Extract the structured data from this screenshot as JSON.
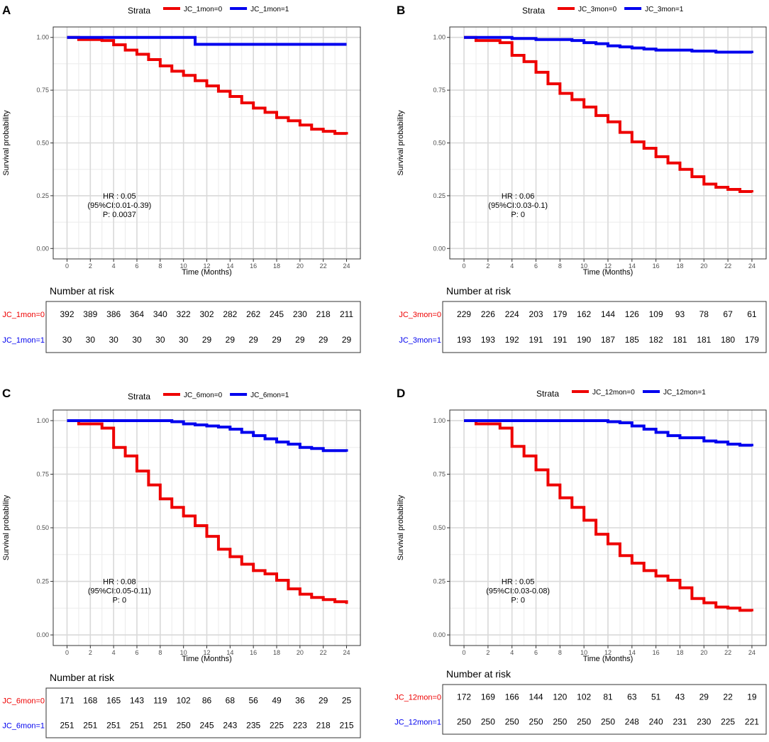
{
  "chart_data": [
    {
      "panel_label": "A",
      "type": "line",
      "legend_title": "Strata",
      "xlabel": "Time (Months)",
      "ylabel": "Survival probability",
      "x_ticks": [
        0,
        2,
        4,
        6,
        8,
        10,
        12,
        14,
        16,
        18,
        20,
        22,
        24
      ],
      "y_ticks": [
        0.0,
        0.25,
        0.5,
        0.75,
        1.0
      ],
      "y_tick_labels": [
        "0.00",
        "0.25",
        "0.50",
        "0.75",
        "1.00"
      ],
      "xlim": [
        0,
        24
      ],
      "ylim": [
        0,
        1
      ],
      "series": [
        {
          "name": "JC_1mon=0",
          "color": "#ee0000",
          "x": [
            0,
            1,
            2,
            3,
            4,
            5,
            6,
            7,
            8,
            9,
            10,
            11,
            12,
            13,
            14,
            15,
            16,
            17,
            18,
            19,
            20,
            21,
            22,
            23,
            24
          ],
          "y": [
            1.0,
            0.99,
            0.99,
            0.985,
            0.965,
            0.94,
            0.92,
            0.895,
            0.865,
            0.84,
            0.82,
            0.795,
            0.77,
            0.745,
            0.72,
            0.69,
            0.665,
            0.645,
            0.62,
            0.605,
            0.585,
            0.565,
            0.555,
            0.545,
            0.54
          ]
        },
        {
          "name": "JC_1mon=1",
          "color": "#0000ee",
          "x": [
            0,
            11,
            24
          ],
          "y": [
            1.0,
            0.967,
            0.967
          ]
        }
      ],
      "annotation": [
        "HR : 0.05",
        "(95%CI:0.01-0.39)",
        "P: 0.0037"
      ],
      "risk_title": "Number at risk",
      "risk_table": [
        {
          "label": "JC_1mon=0",
          "color": "#ee0000",
          "values": [
            "392",
            "389",
            "386",
            "364",
            "340",
            "322",
            "302",
            "282",
            "262",
            "245",
            "230",
            "218",
            "211"
          ]
        },
        {
          "label": "JC_1mon=1",
          "color": "#0000ee",
          "values": [
            "30",
            "30",
            "30",
            "30",
            "30",
            "30",
            "29",
            "29",
            "29",
            "29",
            "29",
            "29",
            "29"
          ]
        }
      ]
    },
    {
      "panel_label": "B",
      "type": "line",
      "legend_title": "Strata",
      "xlabel": "Time (Months)",
      "ylabel": "Survival probability",
      "x_ticks": [
        0,
        2,
        4,
        6,
        8,
        10,
        12,
        14,
        16,
        18,
        20,
        22,
        24
      ],
      "y_ticks": [
        0.0,
        0.25,
        0.5,
        0.75,
        1.0
      ],
      "y_tick_labels": [
        "0.00",
        "0.25",
        "0.50",
        "0.75",
        "1.00"
      ],
      "xlim": [
        0,
        24
      ],
      "ylim": [
        0,
        1
      ],
      "series": [
        {
          "name": "JC_3mon=0",
          "color": "#ee0000",
          "x": [
            0,
            1,
            2,
            3,
            4,
            5,
            6,
            7,
            8,
            9,
            10,
            11,
            12,
            13,
            14,
            15,
            16,
            17,
            18,
            19,
            20,
            21,
            22,
            23,
            24
          ],
          "y": [
            1.0,
            0.985,
            0.985,
            0.975,
            0.915,
            0.885,
            0.835,
            0.78,
            0.735,
            0.705,
            0.67,
            0.63,
            0.6,
            0.55,
            0.505,
            0.475,
            0.435,
            0.405,
            0.375,
            0.34,
            0.305,
            0.29,
            0.28,
            0.27,
            0.265
          ]
        },
        {
          "name": "JC_3mon=1",
          "color": "#0000ee",
          "x": [
            0,
            2,
            4,
            6,
            8,
            9,
            10,
            11,
            12,
            13,
            14,
            15,
            16,
            17,
            18,
            19,
            20,
            21,
            22,
            23,
            24
          ],
          "y": [
            1.0,
            1.0,
            0.995,
            0.99,
            0.99,
            0.985,
            0.975,
            0.97,
            0.96,
            0.955,
            0.95,
            0.945,
            0.94,
            0.94,
            0.94,
            0.935,
            0.935,
            0.93,
            0.93,
            0.93,
            0.925
          ]
        }
      ],
      "annotation": [
        "HR : 0.06",
        "(95%CI:0.03-0.1)",
        "P: 0"
      ],
      "risk_title": "Number at risk",
      "risk_table": [
        {
          "label": "JC_3mon=0",
          "color": "#ee0000",
          "values": [
            "229",
            "226",
            "224",
            "203",
            "179",
            "162",
            "144",
            "126",
            "109",
            "93",
            "78",
            "67",
            "61"
          ]
        },
        {
          "label": "JC_3mon=1",
          "color": "#0000ee",
          "values": [
            "193",
            "193",
            "192",
            "191",
            "191",
            "190",
            "187",
            "185",
            "182",
            "181",
            "181",
            "180",
            "179"
          ]
        }
      ]
    },
    {
      "panel_label": "C",
      "type": "line",
      "legend_title": "Strata",
      "xlabel": "Time (Months)",
      "ylabel": "Survival probability",
      "x_ticks": [
        0,
        2,
        4,
        6,
        8,
        10,
        12,
        14,
        16,
        18,
        20,
        22,
        24
      ],
      "y_ticks": [
        0.0,
        0.25,
        0.5,
        0.75,
        1.0
      ],
      "y_tick_labels": [
        "0.00",
        "0.25",
        "0.50",
        "0.75",
        "1.00"
      ],
      "xlim": [
        0,
        24
      ],
      "ylim": [
        0,
        1
      ],
      "series": [
        {
          "name": "JC_6mon=0",
          "color": "#ee0000",
          "x": [
            0,
            1,
            2,
            3,
            4,
            5,
            6,
            7,
            8,
            9,
            10,
            11,
            12,
            13,
            14,
            15,
            16,
            17,
            18,
            19,
            20,
            21,
            22,
            23,
            24
          ],
          "y": [
            1.0,
            0.985,
            0.985,
            0.965,
            0.875,
            0.835,
            0.765,
            0.7,
            0.635,
            0.595,
            0.555,
            0.51,
            0.46,
            0.4,
            0.365,
            0.33,
            0.3,
            0.285,
            0.255,
            0.215,
            0.19,
            0.175,
            0.165,
            0.155,
            0.145
          ]
        },
        {
          "name": "JC_6mon=1",
          "color": "#0000ee",
          "x": [
            0,
            2,
            4,
            6,
            8,
            9,
            10,
            11,
            12,
            13,
            14,
            15,
            16,
            17,
            18,
            19,
            20,
            21,
            22,
            23,
            24
          ],
          "y": [
            1.0,
            1.0,
            1.0,
            1.0,
            1.0,
            0.995,
            0.985,
            0.98,
            0.975,
            0.97,
            0.96,
            0.945,
            0.93,
            0.915,
            0.9,
            0.89,
            0.875,
            0.87,
            0.86,
            0.86,
            0.855
          ]
        }
      ],
      "annotation": [
        "HR : 0.08",
        "(95%CI:0.05-0.11)",
        "P: 0"
      ],
      "risk_title": "Number at risk",
      "risk_table": [
        {
          "label": "JC_6mon=0",
          "color": "#ee0000",
          "values": [
            "171",
            "168",
            "165",
            "143",
            "119",
            "102",
            "86",
            "68",
            "56",
            "49",
            "36",
            "29",
            "25"
          ]
        },
        {
          "label": "JC_6mon=1",
          "color": "#0000ee",
          "values": [
            "251",
            "251",
            "251",
            "251",
            "251",
            "250",
            "245",
            "243",
            "235",
            "225",
            "223",
            "218",
            "215"
          ]
        }
      ]
    },
    {
      "panel_label": "D",
      "type": "line",
      "legend_title": "Strata",
      "xlabel": "Time (Months)",
      "ylabel": "Survival probability",
      "x_ticks": [
        0,
        2,
        4,
        6,
        8,
        10,
        12,
        14,
        16,
        18,
        20,
        22,
        24
      ],
      "y_ticks": [
        0.0,
        0.25,
        0.5,
        0.75,
        1.0
      ],
      "y_tick_labels": [
        "0.00",
        "0.25",
        "0.50",
        "0.75",
        "1.00"
      ],
      "xlim": [
        0,
        24
      ],
      "ylim": [
        0,
        1
      ],
      "series": [
        {
          "name": "JC_12mon=0",
          "color": "#ee0000",
          "x": [
            0,
            1,
            2,
            3,
            4,
            5,
            6,
            7,
            8,
            9,
            10,
            11,
            12,
            13,
            14,
            15,
            16,
            17,
            18,
            19,
            20,
            21,
            22,
            23,
            24
          ],
          "y": [
            1.0,
            0.985,
            0.985,
            0.965,
            0.88,
            0.835,
            0.77,
            0.7,
            0.64,
            0.595,
            0.535,
            0.47,
            0.425,
            0.37,
            0.335,
            0.3,
            0.275,
            0.255,
            0.22,
            0.17,
            0.15,
            0.13,
            0.125,
            0.115,
            0.11
          ]
        },
        {
          "name": "JC_12mon=1",
          "color": "#0000ee",
          "x": [
            0,
            2,
            4,
            6,
            8,
            10,
            11,
            12,
            13,
            14,
            15,
            16,
            17,
            18,
            19,
            20,
            21,
            22,
            23,
            24
          ],
          "y": [
            1.0,
            1.0,
            1.0,
            1.0,
            1.0,
            1.0,
            1.0,
            0.995,
            0.99,
            0.975,
            0.96,
            0.945,
            0.93,
            0.92,
            0.92,
            0.905,
            0.9,
            0.89,
            0.885,
            0.88
          ]
        }
      ],
      "annotation": [
        "HR : 0.05",
        "(95%CI:0.03-0.08)",
        "P: 0"
      ],
      "risk_title": "Number at risk",
      "risk_table": [
        {
          "label": "JC_12mon=0",
          "color": "#ee0000",
          "values": [
            "172",
            "169",
            "166",
            "144",
            "120",
            "102",
            "81",
            "63",
            "51",
            "43",
            "29",
            "22",
            "19"
          ]
        },
        {
          "label": "JC_12mon=1",
          "color": "#0000ee",
          "values": [
            "250",
            "250",
            "250",
            "250",
            "250",
            "250",
            "250",
            "248",
            "240",
            "231",
            "230",
            "225",
            "221"
          ]
        }
      ]
    }
  ]
}
